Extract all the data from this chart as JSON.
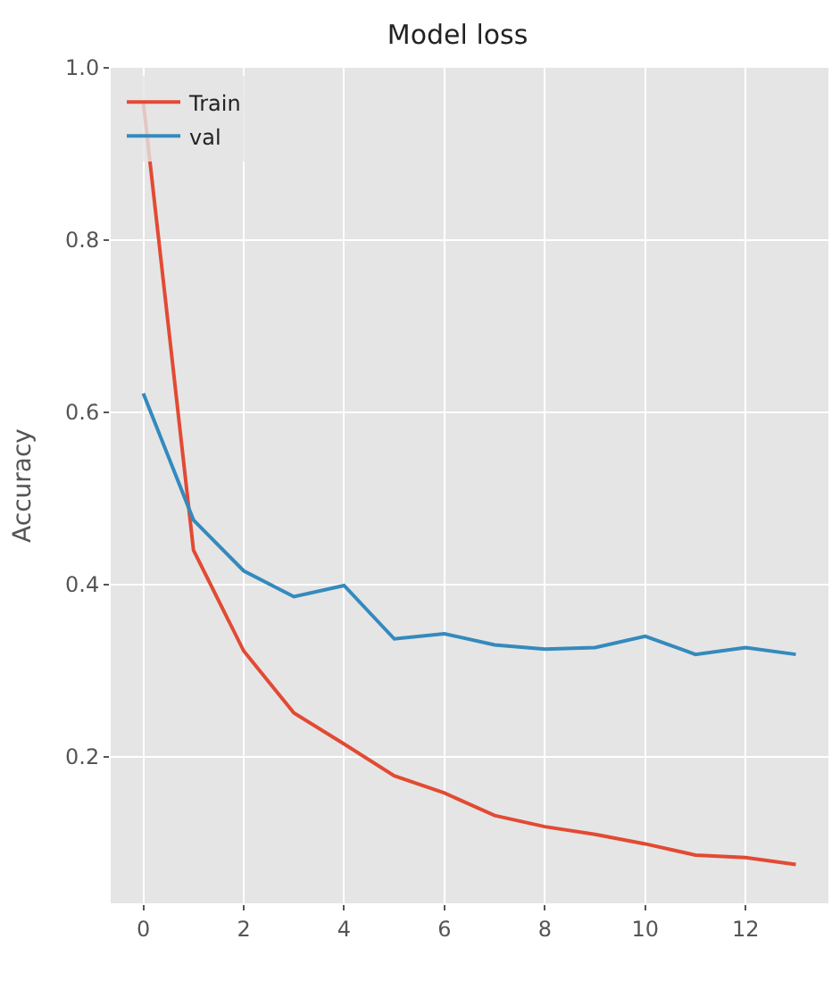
{
  "chart_data": {
    "type": "line",
    "title": "Model loss",
    "ylabel": "Accuracy",
    "x": [
      0,
      1,
      2,
      3,
      4,
      5,
      6,
      7,
      8,
      9,
      10,
      11,
      12,
      13
    ],
    "series": [
      {
        "name": "Train",
        "color": "#e24a33",
        "values": [
          0.96,
          0.44,
          0.323,
          0.251,
          0.215,
          0.178,
          0.158,
          0.132,
          0.119,
          0.11,
          0.099,
          0.086,
          0.083,
          0.075
        ]
      },
      {
        "name": "val",
        "color": "#348abd",
        "values": [
          0.622,
          0.475,
          0.416,
          0.386,
          0.399,
          0.337,
          0.343,
          0.33,
          0.325,
          0.327,
          0.34,
          0.319,
          0.327,
          0.319
        ]
      }
    ],
    "xlim": [
      -0.65,
      13.65
    ],
    "ylim": [
      0.03,
      1.0
    ],
    "xticks": [
      0,
      2,
      4,
      6,
      8,
      10,
      12
    ],
    "yticks": [
      0.2,
      0.4,
      0.6,
      0.8,
      {
        "value": 1,
        "label": "1.0"
      }
    ],
    "grid": true,
    "legend": "top left",
    "marker": "none",
    "line_style": "solid"
  }
}
